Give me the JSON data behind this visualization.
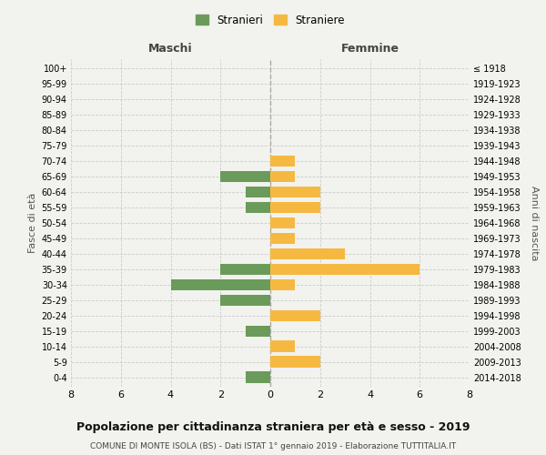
{
  "age_groups": [
    "0-4",
    "5-9",
    "10-14",
    "15-19",
    "20-24",
    "25-29",
    "30-34",
    "35-39",
    "40-44",
    "45-49",
    "50-54",
    "55-59",
    "60-64",
    "65-69",
    "70-74",
    "75-79",
    "80-84",
    "85-89",
    "90-94",
    "95-99",
    "100+"
  ],
  "birth_years": [
    "2014-2018",
    "2009-2013",
    "2004-2008",
    "1999-2003",
    "1994-1998",
    "1989-1993",
    "1984-1988",
    "1979-1983",
    "1974-1978",
    "1969-1973",
    "1964-1968",
    "1959-1963",
    "1954-1958",
    "1949-1953",
    "1944-1948",
    "1939-1943",
    "1934-1938",
    "1929-1933",
    "1924-1928",
    "1919-1923",
    "≤ 1918"
  ],
  "males": [
    1,
    0,
    0,
    1,
    0,
    2,
    4,
    2,
    0,
    0,
    0,
    1,
    1,
    2,
    0,
    0,
    0,
    0,
    0,
    0,
    0
  ],
  "females": [
    0,
    2,
    1,
    0,
    2,
    0,
    1,
    6,
    3,
    1,
    1,
    2,
    2,
    1,
    1,
    0,
    0,
    0,
    0,
    0,
    0
  ],
  "male_color": "#6a9b5a",
  "female_color": "#f5b942",
  "background_color": "#f2f2ee",
  "grid_color": "#cccccc",
  "title": "Popolazione per cittadinanza straniera per età e sesso - 2019",
  "subtitle": "COMUNE DI MONTE ISOLA (BS) - Dati ISTAT 1° gennaio 2019 - Elaborazione TUTTITALIA.IT",
  "xlabel_left": "Maschi",
  "xlabel_right": "Femmine",
  "ylabel_left": "Fasce di età",
  "ylabel_right": "Anni di nascita",
  "legend_males": "Stranieri",
  "legend_females": "Straniere",
  "xlim": 8,
  "bar_height": 0.75
}
